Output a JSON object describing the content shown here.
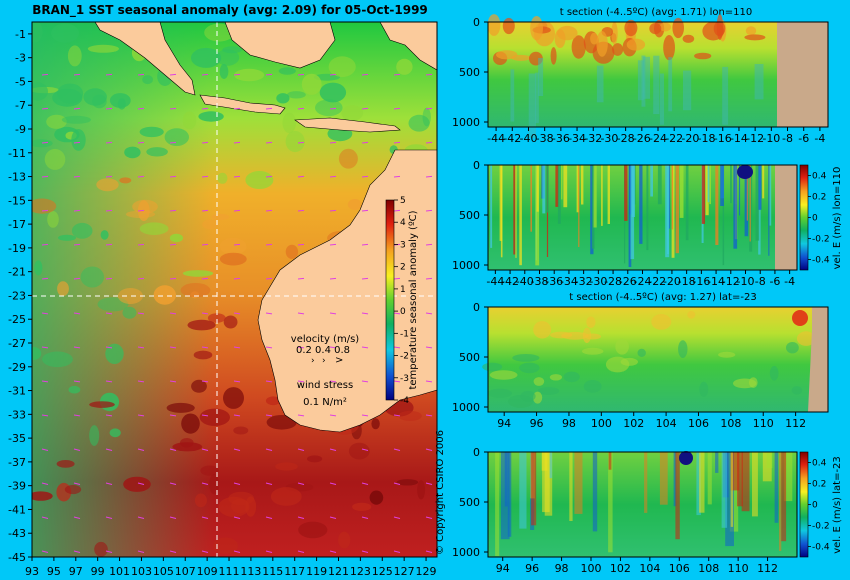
{
  "colors": {
    "background": "#00c8f8",
    "land": "#fbcb9c",
    "mask": "#c9a98a"
  },
  "map": {
    "title": "BRAN_1  SST seasonal anomaly  (avg: 2.09)  for 05-Oct-1999",
    "lat_ticks": [
      "-1",
      "-3",
      "-5",
      "-7",
      "-9",
      "-11",
      "-13",
      "-15",
      "-17",
      "-19",
      "-21",
      "-23",
      "-25",
      "-27",
      "-29",
      "-31",
      "-33",
      "-35",
      "-37",
      "-39",
      "-41",
      "-43",
      "-45"
    ],
    "lon_ticks": [
      "93",
      "95",
      "97",
      "99",
      "101",
      "103",
      "105",
      "107",
      "109",
      "111",
      "113",
      "115",
      "117",
      "119",
      "121",
      "123",
      "125",
      "127",
      "129"
    ],
    "colorbar_label": "temperature seasonal anomaly (ºC)",
    "colorbar_ticks": [
      "5",
      "4",
      "3",
      "2",
      "1",
      "0",
      "-1",
      "-2",
      "-3",
      "-4"
    ],
    "velocity_label": "velocity (m/s)",
    "velocity_scale": "0.2 0.4 0.8",
    "wind_label": "wind stress",
    "wind_scale": "0.1 N/m²",
    "copyright": "© Copyright CSIRO 2006"
  },
  "chart_data": [
    {
      "type": "heatmap",
      "title": "BRAN_1  SST seasonal anomaly  (avg: 2.09)  for 05-Oct-1999",
      "xlim": [
        93,
        130
      ],
      "ylim": [
        -45,
        0
      ],
      "x_ticks": [
        93,
        95,
        97,
        99,
        101,
        103,
        105,
        107,
        109,
        111,
        113,
        115,
        117,
        119,
        121,
        123,
        125,
        127,
        129
      ],
      "y_ticks": [
        -1,
        -3,
        -5,
        -7,
        -9,
        -11,
        -13,
        -15,
        -17,
        -19,
        -21,
        -23,
        -25,
        -27,
        -29,
        -31,
        -33,
        -35,
        -37,
        -39,
        -41,
        -43,
        -45
      ],
      "colorbar": {
        "label": "temperature seasonal anomaly (ºC)",
        "range": [
          -4,
          5
        ]
      },
      "section_lines": {
        "lon": 110,
        "lat": -23
      }
    },
    {
      "type": "heatmap",
      "title": "t section (-4..5ºC) (avg: 1.71) lon=110",
      "xlim": [
        -45,
        -3
      ],
      "ylim": [
        1050,
        0
      ],
      "x_ticks": [
        "-44",
        "-42",
        "-40",
        "-38",
        "-36",
        "-34",
        "-32",
        "-30",
        "-28",
        "-26",
        "-24",
        "-22",
        "-20",
        "-18",
        "-16",
        "-14",
        "-12",
        "-10",
        "-8",
        "-6",
        "-4"
      ],
      "y_ticks": [
        "0",
        "500",
        "1000"
      ],
      "land_from_x": -8
    },
    {
      "type": "heatmap",
      "title": "",
      "xlim": [
        -45,
        -3
      ],
      "ylim": [
        1050,
        0
      ],
      "x_ticks": [
        "-44",
        "-42",
        "-40",
        "-38",
        "-36",
        "-34",
        "-32",
        "-30",
        "-28",
        "-26",
        "-24",
        "-22",
        "-20",
        "-18",
        "-16",
        "-14",
        "-12",
        "-10",
        "-8",
        "-6",
        "-4"
      ],
      "y_ticks": [
        "0",
        "500",
        "1000"
      ],
      "colorbar": {
        "label": "vel. E (m/s) lon=110",
        "ticks": [
          "0.4",
          "0.2",
          "0",
          "-0.2",
          "-0.4"
        ],
        "range": [
          -0.5,
          0.5
        ]
      }
    },
    {
      "type": "heatmap",
      "title": "t section (-4..5ºC) (avg: 1.27) lat=-23",
      "xlim": [
        93,
        114
      ],
      "ylim": [
        1050,
        0
      ],
      "x_ticks": [
        "94",
        "96",
        "98",
        "100",
        "102",
        "104",
        "106",
        "108",
        "110",
        "112"
      ],
      "y_ticks": [
        "0",
        "500",
        "1000"
      ]
    },
    {
      "type": "heatmap",
      "title": "",
      "xlim": [
        93,
        114
      ],
      "ylim": [
        1050,
        0
      ],
      "x_ticks": [
        "94",
        "96",
        "98",
        "100",
        "102",
        "104",
        "106",
        "108",
        "110",
        "112"
      ],
      "y_ticks": [
        "0",
        "500",
        "1000"
      ],
      "colorbar": {
        "label": "vel. E (m/s) lat=-23",
        "ticks": [
          "0.4",
          "0.2",
          "0",
          "-0.2",
          "-0.4"
        ],
        "range": [
          -0.5,
          0.5
        ]
      }
    }
  ],
  "panels": {
    "p1": {
      "title": "t section (-4..5ºC) (avg: 1.71) lon=110",
      "y_ticks": [
        "0",
        "500",
        "1000"
      ],
      "x_ticks": [
        "-44",
        "-42",
        "-40",
        "-38",
        "-36",
        "-34",
        "-32",
        "-30",
        "-28",
        "-26",
        "-24",
        "-22",
        "-20",
        "-18",
        "-16",
        "-14",
        "-12",
        "-10",
        "-8",
        "-6",
        "-4"
      ]
    },
    "p2": {
      "y_ticks": [
        "0",
        "500",
        "1000"
      ],
      "x_ticks": [
        "-44",
        "-42",
        "-40",
        "-38",
        "-36",
        "-34",
        "-32",
        "-30",
        "-28",
        "-26",
        "-24",
        "-22",
        "-20",
        "-18",
        "-16",
        "-14",
        "-12",
        "-10",
        "-8",
        "-6",
        "-4"
      ],
      "cb_label": "vel. E (m/s) lon=110",
      "cb_ticks": [
        "0.4",
        "0.2",
        "0",
        "-0.2",
        "-0.4"
      ]
    },
    "p3": {
      "title": "t section (-4..5ºC) (avg: 1.27) lat=-23",
      "y_ticks": [
        "0",
        "500",
        "1000"
      ],
      "x_ticks": [
        "94",
        "96",
        "98",
        "100",
        "102",
        "104",
        "106",
        "108",
        "110",
        "112"
      ]
    },
    "p4": {
      "y_ticks": [
        "0",
        "500",
        "1000"
      ],
      "x_ticks": [
        "94",
        "96",
        "98",
        "100",
        "102",
        "104",
        "106",
        "108",
        "110",
        "112"
      ],
      "cb_label": "vel. E (m/s) lat=-23",
      "cb_ticks": [
        "0.4",
        "0.2",
        "0",
        "-0.2",
        "-0.4"
      ]
    }
  }
}
